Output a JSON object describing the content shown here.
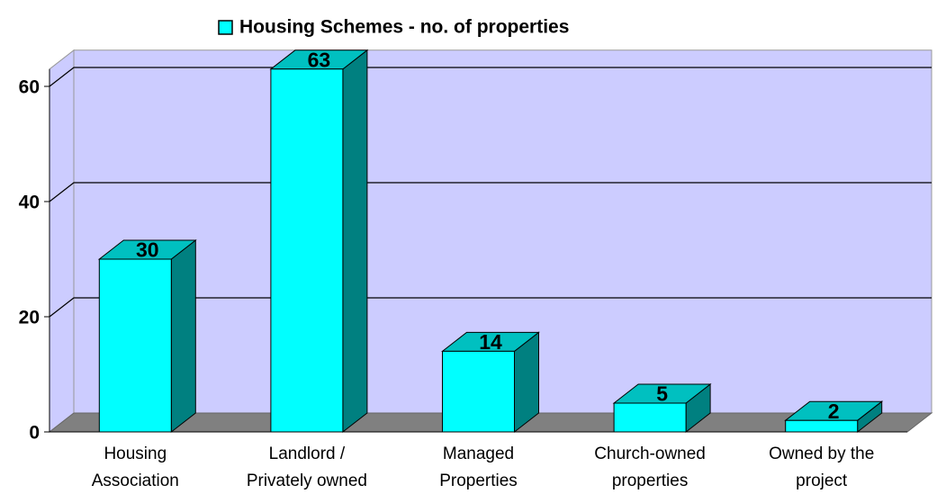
{
  "chart_data": {
    "type": "bar3d",
    "categories": [
      "Housing\nAssociation",
      "Landlord /\nPrivately owned",
      "Managed\nProperties",
      "Church-owned\nproperties",
      "Owned by the\nproject"
    ],
    "series": [
      {
        "name": "Housing Schemes - no. of properties",
        "color": "#00ffff",
        "values": [
          30,
          63,
          14,
          5,
          2
        ]
      }
    ],
    "ylim": [
      0,
      63
    ],
    "yticks": [
      0,
      20,
      40,
      60
    ],
    "grid": true,
    "legend": "top"
  }
}
